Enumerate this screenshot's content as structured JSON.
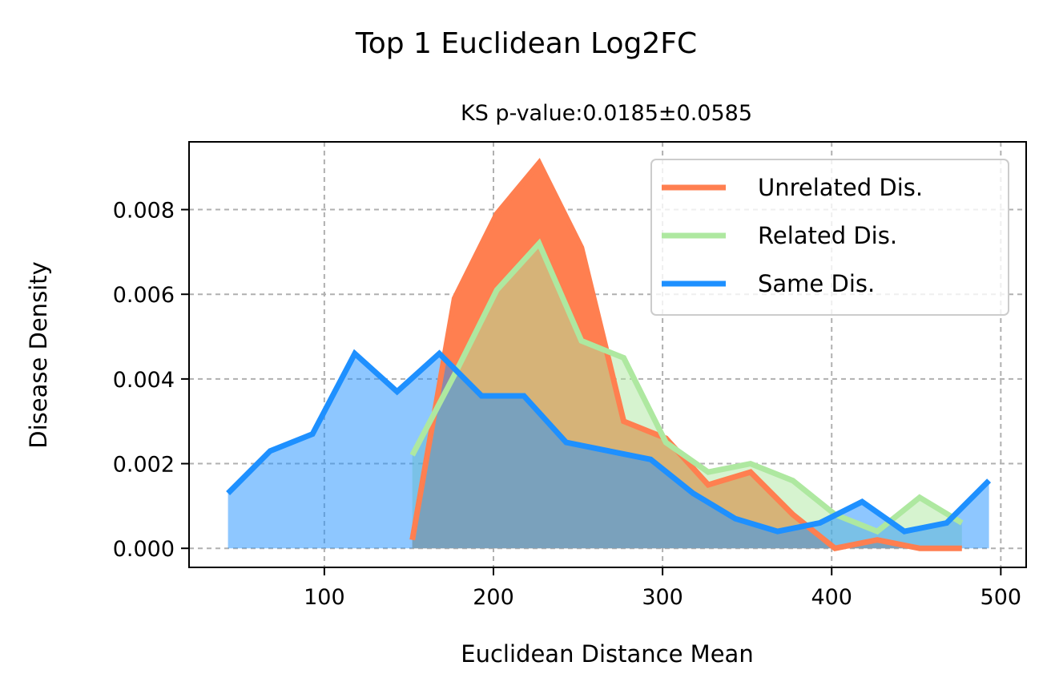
{
  "chart_data": {
    "type": "area",
    "title": "Top 1 Euclidean Log2FC",
    "subtitle": "KS p-value:0.0185±0.0585",
    "xlabel": "Euclidean Distance Mean",
    "ylabel": "Disease Density",
    "xlim": [
      20,
      515
    ],
    "ylim": [
      -0.00045,
      0.0096
    ],
    "xticks": [
      100,
      200,
      300,
      400,
      500
    ],
    "xtick_labels": [
      "100",
      "200",
      "300",
      "400",
      "500"
    ],
    "yticks": [
      0.0,
      0.002,
      0.004,
      0.006,
      0.008
    ],
    "ytick_labels": [
      "0.000",
      "0.002",
      "0.004",
      "0.006",
      "0.008"
    ],
    "grid": true,
    "legend_position": "top-right",
    "series": [
      {
        "name": "Unrelated Dis.",
        "color": "#ff7f50",
        "x": [
          152,
          177,
          202,
          227,
          252,
          277,
          302,
          327,
          352,
          377,
          402,
          427,
          452,
          477
        ],
        "y": [
          0.0002,
          0.0059,
          0.0079,
          0.0091,
          0.0071,
          0.003,
          0.0026,
          0.0015,
          0.0018,
          0.0008,
          0.0,
          0.0002,
          0.0,
          0.0
        ]
      },
      {
        "name": "Related Dis.",
        "color": "#aee8a0",
        "x": [
          152,
          177,
          202,
          227,
          252,
          277,
          302,
          327,
          352,
          377,
          402,
          427,
          452,
          477
        ],
        "y": [
          0.0022,
          0.0041,
          0.0061,
          0.0072,
          0.0049,
          0.0045,
          0.0025,
          0.0018,
          0.002,
          0.0016,
          0.0008,
          0.0004,
          0.0012,
          0.0006
        ]
      },
      {
        "name": "Same Dis.",
        "color": "#1e90ff",
        "x": [
          43,
          68,
          93,
          118,
          143,
          168,
          193,
          218,
          243,
          268,
          293,
          318,
          343,
          368,
          393,
          418,
          443,
          468,
          493
        ],
        "y": [
          0.0013,
          0.0023,
          0.0027,
          0.0046,
          0.0037,
          0.0046,
          0.0036,
          0.0036,
          0.0025,
          0.0023,
          0.0021,
          0.0013,
          0.0007,
          0.0004,
          0.0006,
          0.0011,
          0.0004,
          0.0006,
          0.0016
        ]
      }
    ]
  }
}
